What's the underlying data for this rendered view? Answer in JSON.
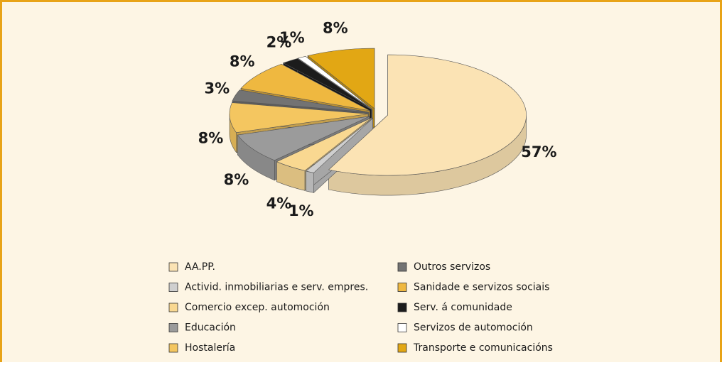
{
  "chart_data": {
    "type": "pie",
    "categories": [
      "AA.PP.",
      "Activid. inmobiliarias e serv. empres.",
      "Comercio excep. automoción",
      "Educación",
      "Hostalería",
      "Outros servizos",
      "Sanidade e servizos sociais",
      "Serv. á comunidade",
      "Servizos de automoción",
      "Transporte e comunicacións"
    ],
    "values": [
      57,
      1,
      4,
      8,
      8,
      3,
      8,
      2,
      1,
      8
    ],
    "value_labels": [
      "57%",
      "1%",
      "4%",
      "8%",
      "8%",
      "3%",
      "8%",
      "2%",
      "1%",
      "8%"
    ],
    "colors": [
      "#fbe3b4",
      "#cfcfcf",
      "#f9d891",
      "#9b9b9b",
      "#f4c660",
      "#737373",
      "#efb840",
      "#1c1c1c",
      "#ffffff",
      "#e2a714"
    ]
  }
}
